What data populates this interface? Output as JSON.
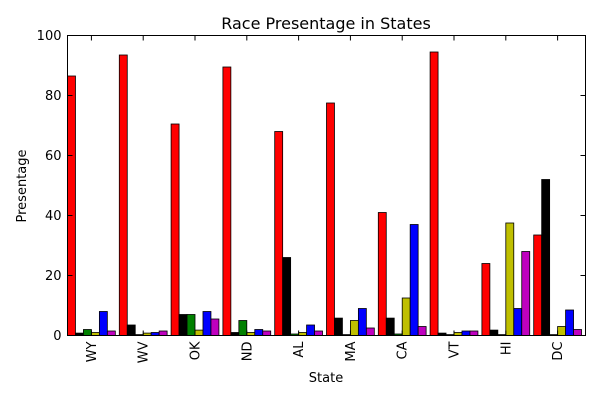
{
  "chart_data": {
    "type": "bar",
    "title": "Race Presentage in States",
    "xlabel": "State",
    "ylabel": "Presentage",
    "ylim": [
      0,
      100
    ],
    "yticks": [
      0,
      20,
      40,
      60,
      80,
      100
    ],
    "grid": false,
    "legend": "none",
    "categories": [
      "WY",
      "WV",
      "OK",
      "ND",
      "AL",
      "MA",
      "CA",
      "VT",
      "HI",
      "DC"
    ],
    "series": [
      {
        "color": "#ff0000",
        "values": [
          86.5,
          93.5,
          70.5,
          89.5,
          68,
          77.5,
          41,
          94.5,
          24,
          33.5
        ]
      },
      {
        "color": "#000000",
        "values": [
          0.8,
          3.5,
          7,
          1,
          26,
          5.8,
          5.8,
          0.8,
          1.8,
          52
        ]
      },
      {
        "color": "#008000",
        "values": [
          2,
          0.3,
          7,
          5,
          0.5,
          0.3,
          0.5,
          0.3,
          0.3,
          0.3
        ]
      },
      {
        "color": "#bfbf00",
        "values": [
          1,
          0.8,
          1.8,
          1,
          1,
          5,
          12.5,
          1,
          37.5,
          3
        ]
      },
      {
        "color": "#0000ff",
        "values": [
          8,
          1,
          8,
          2,
          3.5,
          9,
          37,
          1.5,
          9,
          8.5
        ]
      },
      {
        "color": "#bf00bf",
        "values": [
          1.5,
          1.5,
          5.5,
          1.5,
          1.5,
          2.5,
          3,
          1.5,
          28,
          2
        ]
      }
    ]
  }
}
